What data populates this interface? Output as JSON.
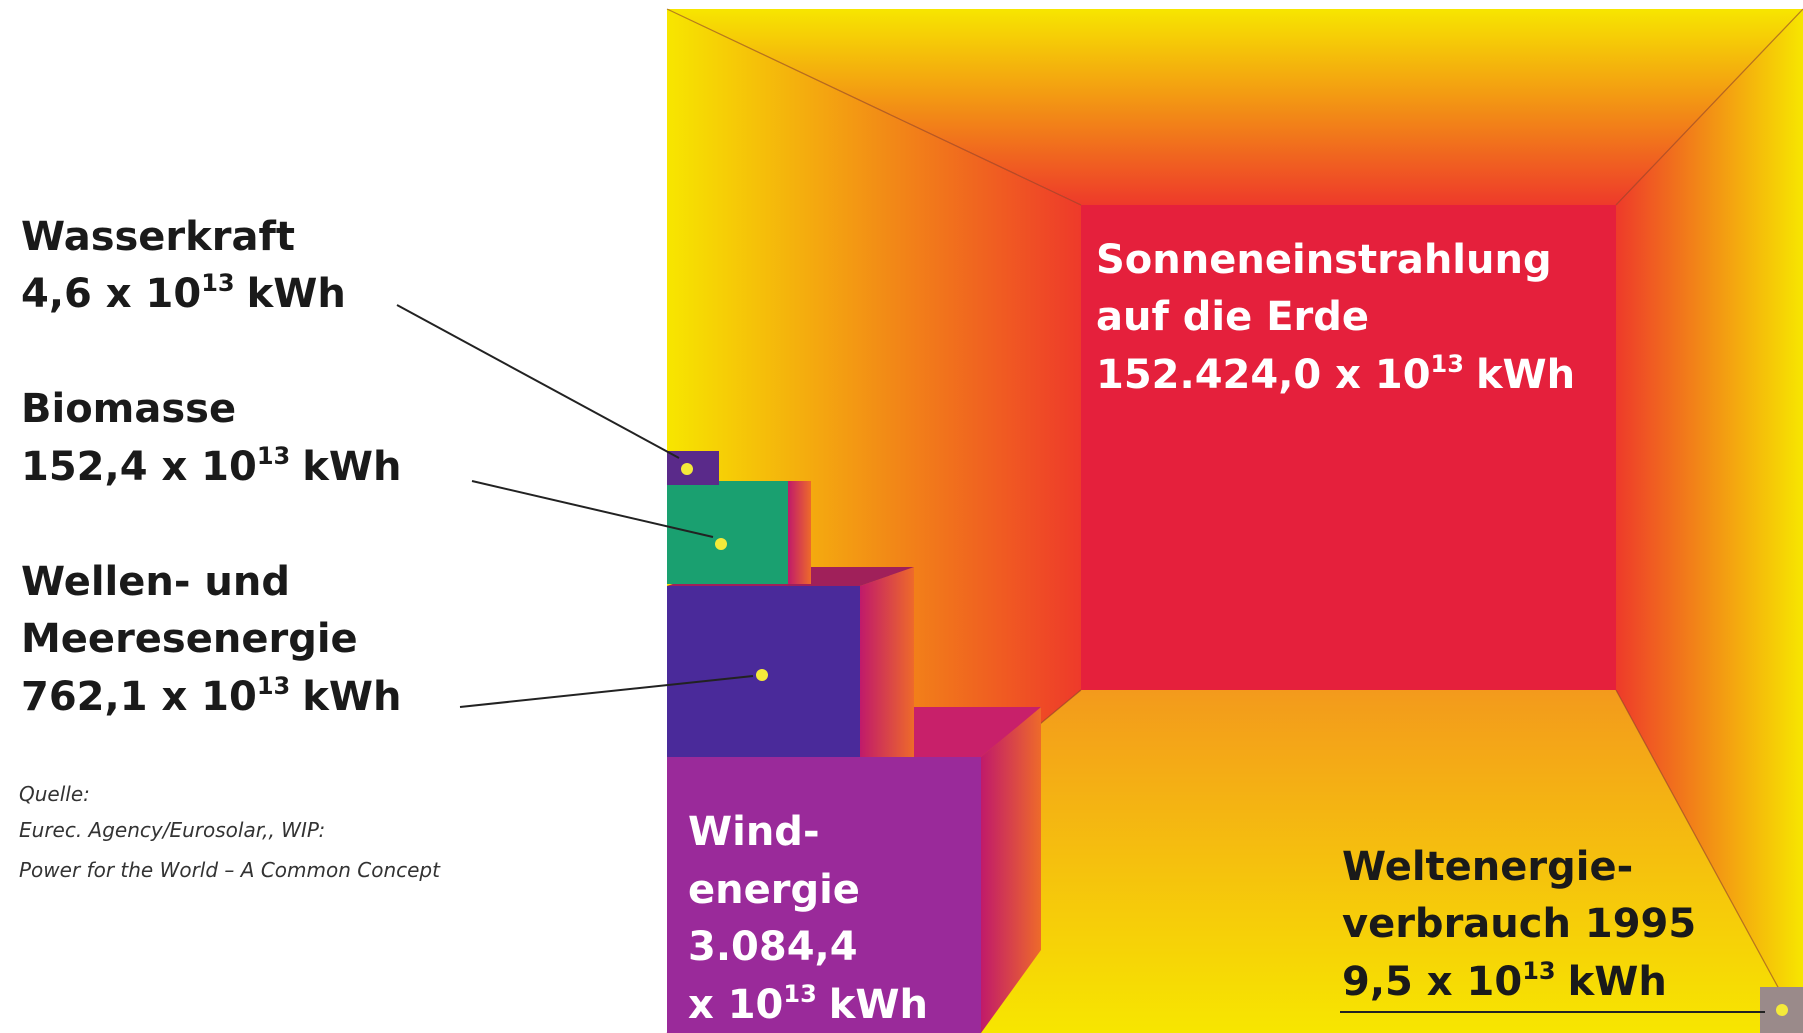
{
  "items": [
    {
      "lines": [
        "Wasserkraft"
      ],
      "mantissa": "4,6 x 10",
      "exponent": "13",
      "unit": "kWh"
    },
    {
      "lines": [
        "Biomasse"
      ],
      "mantissa": "152,4 x 10",
      "exponent": "13",
      "unit": "kWh"
    },
    {
      "lines": [
        "Wellen- und",
        "Meeresenergie"
      ],
      "mantissa": "762,1 x 10",
      "exponent": "13",
      "unit": "kWh"
    }
  ],
  "sun": {
    "lines": [
      "Sonneneinstrahlung",
      "auf die Erde"
    ],
    "mantissa": "152.424,0 x 10",
    "exponent": "13",
    "unit": "kWh"
  },
  "wind": {
    "lines": [
      "Wind-",
      "energie",
      "3.084,4"
    ],
    "mantissa": "x 10",
    "exponent": "13",
    "unit": "kWh"
  },
  "world": {
    "lines": [
      "Weltenergie-",
      "verbrauch 1995"
    ],
    "mantissa": "9,5 x 10",
    "exponent": "13",
    "unit": "kWh"
  },
  "source": {
    "label": "Quelle:",
    "lines": [
      "Eurec. Agency/Eurosolar,, WIP:",
      "Power for the World – A Common Concept"
    ]
  }
}
